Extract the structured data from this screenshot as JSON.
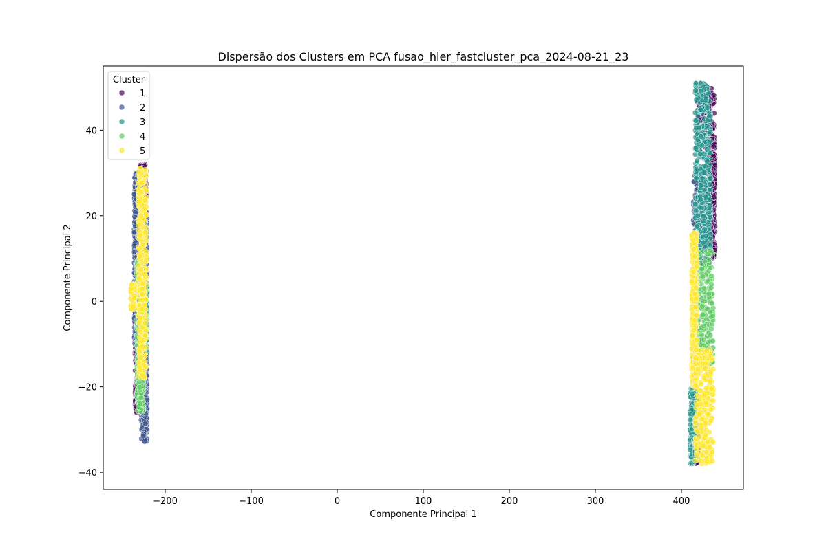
{
  "chart_data": {
    "type": "scatter",
    "title": "Dispersão dos Clusters em PCA fusao_hier_fastcluster_pca_2024-08-21_23",
    "xlabel": "Componente Principal 1",
    "ylabel": "Componente Principal 2",
    "xlim": [
      -272,
      472
    ],
    "ylim": [
      -44,
      55
    ],
    "xticks": [
      -200,
      -100,
      0,
      100,
      200,
      300,
      400
    ],
    "xtick_labels": [
      "−200",
      "−100",
      "0",
      "100",
      "200",
      "300",
      "400"
    ],
    "yticks": [
      -40,
      -20,
      0,
      20,
      40
    ],
    "ytick_labels": [
      "−40",
      "−20",
      "0",
      "20",
      "40"
    ],
    "grid": false,
    "legend": {
      "title": "Cluster",
      "placement": "top-left",
      "entries": [
        "1",
        "2",
        "3",
        "4",
        "5"
      ]
    },
    "series": [
      {
        "name": "1",
        "color": "#440154",
        "groups": [
          {
            "x_range": [
              -229,
              -222
            ],
            "y_range": [
              10,
              32
            ]
          },
          {
            "x_range": [
              -235,
              -228
            ],
            "y_range": [
              -26,
              18
            ]
          },
          {
            "x_range": [
              418,
              438
            ],
            "y_range": [
              36,
              50
            ]
          },
          {
            "x_range": [
              432,
              439
            ],
            "y_range": [
              10,
              38
            ]
          },
          {
            "x_range": [
              412,
              420
            ],
            "y_range": [
              -38,
              -30
            ]
          }
        ]
      },
      {
        "name": "2",
        "color": "#3b528b",
        "groups": [
          {
            "x_range": [
              -228,
              -221
            ],
            "y_range": [
              -33,
              20
            ]
          },
          {
            "x_range": [
              -236,
              -229
            ],
            "y_range": [
              -10,
              30
            ]
          },
          {
            "x_range": [
              414,
              434
            ],
            "y_range": [
              8,
              30
            ]
          }
        ]
      },
      {
        "name": "3",
        "color": "#21918c",
        "groups": [
          {
            "x_range": [
              -226,
              -221
            ],
            "y_range": [
              -12,
              4
            ]
          },
          {
            "x_range": [
              416,
              434
            ],
            "y_range": [
              10,
              51
            ]
          },
          {
            "x_range": [
              410,
              418
            ],
            "y_range": [
              -38,
              -20
            ]
          }
        ]
      },
      {
        "name": "4",
        "color": "#5ec962",
        "groups": [
          {
            "x_range": [
              -233,
              -225
            ],
            "y_range": [
              -26,
              10
            ]
          },
          {
            "x_range": [
              413,
              437
            ],
            "y_range": [
              -15,
              12
            ]
          }
        ]
      },
      {
        "name": "5",
        "color": "#fde725",
        "groups": [
          {
            "x_range": [
              -231,
              -222
            ],
            "y_range": [
              -18,
              31
            ]
          },
          {
            "x_range": [
              -240,
              -235
            ],
            "y_range": [
              -2,
              4
            ]
          },
          {
            "x_range": [
              412,
              418
            ],
            "y_range": [
              -20,
              16
            ]
          },
          {
            "x_range": [
              416,
              437
            ],
            "y_range": [
              -38,
              -11
            ]
          }
        ]
      }
    ]
  }
}
